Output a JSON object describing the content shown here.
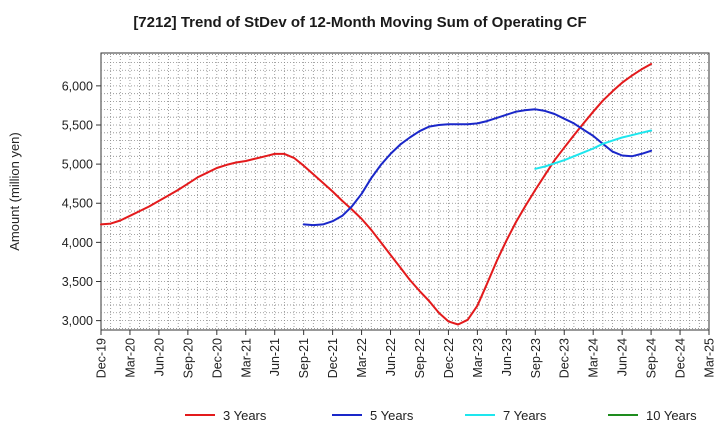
{
  "chart_data": {
    "type": "line",
    "title": "[7212]  Trend of StDev of 12-Month Moving Sum of Operating CF",
    "ylabel": "Amount (million yen)",
    "xlabel": "",
    "ylim": [
      2880,
      6420
    ],
    "yticks": [
      3000,
      3500,
      4000,
      4500,
      5000,
      5500,
      6000
    ],
    "ytick_labels": [
      "3,000",
      "3,500",
      "4,000",
      "4,500",
      "5,000",
      "5,500",
      "6,000"
    ],
    "xticks": [
      "Dec-19",
      "Mar-20",
      "Jun-20",
      "Sep-20",
      "Dec-20",
      "Mar-21",
      "Jun-21",
      "Sep-21",
      "Dec-21",
      "Mar-22",
      "Jun-22",
      "Sep-22",
      "Dec-22",
      "Mar-23",
      "Jun-23",
      "Sep-23",
      "Dec-23",
      "Mar-24",
      "Jun-24",
      "Sep-24",
      "Dec-24",
      "Mar-25"
    ],
    "grid": true,
    "legend_position": "bottom",
    "series": [
      {
        "name": "3 Years",
        "color": "#e31a1c",
        "x": [
          "Dec-19",
          "Jan-20",
          "Feb-20",
          "Mar-20",
          "Apr-20",
          "May-20",
          "Jun-20",
          "Jul-20",
          "Aug-20",
          "Sep-20",
          "Oct-20",
          "Nov-20",
          "Dec-20",
          "Jan-21",
          "Feb-21",
          "Mar-21",
          "Apr-21",
          "May-21",
          "Jun-21",
          "Jul-21",
          "Aug-21",
          "Sep-21",
          "Oct-21",
          "Nov-21",
          "Dec-21",
          "Jan-22",
          "Feb-22",
          "Mar-22",
          "Apr-22",
          "May-22",
          "Jun-22",
          "Jul-22",
          "Aug-22",
          "Sep-22",
          "Oct-22",
          "Nov-22",
          "Dec-22",
          "Jan-23",
          "Feb-23",
          "Mar-23",
          "Apr-23",
          "May-23",
          "Jun-23",
          "Jul-23",
          "Aug-23",
          "Sep-23",
          "Oct-23",
          "Nov-23",
          "Dec-23",
          "Jan-24",
          "Feb-24",
          "Mar-24",
          "Apr-24",
          "May-24",
          "Jun-24",
          "Jul-24",
          "Aug-24",
          "Sep-24"
        ],
        "values": [
          4230,
          4240,
          4280,
          4340,
          4400,
          4460,
          4530,
          4600,
          4670,
          4750,
          4830,
          4890,
          4950,
          4990,
          5020,
          5040,
          5070,
          5100,
          5130,
          5130,
          5080,
          4980,
          4870,
          4760,
          4650,
          4530,
          4420,
          4300,
          4160,
          4000,
          3840,
          3680,
          3520,
          3380,
          3250,
          3100,
          2990,
          2950,
          3010,
          3190,
          3470,
          3760,
          4020,
          4260,
          4470,
          4670,
          4860,
          5050,
          5210,
          5370,
          5520,
          5670,
          5810,
          5930,
          6040,
          6130,
          6210,
          6280
        ]
      },
      {
        "name": "5 Years",
        "color": "#1a27c9",
        "x": [
          "Sep-21",
          "Oct-21",
          "Nov-21",
          "Dec-21",
          "Jan-22",
          "Feb-22",
          "Mar-22",
          "Apr-22",
          "May-22",
          "Jun-22",
          "Jul-22",
          "Aug-22",
          "Sep-22",
          "Oct-22",
          "Nov-22",
          "Dec-22",
          "Jan-23",
          "Feb-23",
          "Mar-23",
          "Apr-23",
          "May-23",
          "Jun-23",
          "Jul-23",
          "Aug-23",
          "Sep-23",
          "Oct-23",
          "Nov-23",
          "Dec-23",
          "Jan-24",
          "Feb-24",
          "Mar-24",
          "Apr-24",
          "May-24",
          "Jun-24",
          "Jul-24",
          "Aug-24",
          "Sep-24"
        ],
        "values": [
          4230,
          4220,
          4230,
          4270,
          4340,
          4460,
          4620,
          4820,
          4990,
          5130,
          5250,
          5340,
          5420,
          5480,
          5500,
          5510,
          5510,
          5510,
          5520,
          5550,
          5590,
          5630,
          5670,
          5690,
          5700,
          5680,
          5640,
          5580,
          5520,
          5440,
          5360,
          5260,
          5160,
          5110,
          5100,
          5130,
          5170
        ]
      },
      {
        "name": "7 Years",
        "color": "#1ee6ee",
        "x": [
          "Sep-23",
          "Oct-23",
          "Nov-23",
          "Dec-23",
          "Jan-24",
          "Feb-24",
          "Mar-24",
          "Apr-24",
          "May-24",
          "Jun-24",
          "Jul-24",
          "Aug-24",
          "Sep-24"
        ],
        "values": [
          4940,
          4970,
          5010,
          5050,
          5100,
          5150,
          5200,
          5260,
          5300,
          5340,
          5370,
          5400,
          5430
        ]
      },
      {
        "name": "10 Years",
        "color": "#1e8c1e",
        "x": [],
        "values": []
      }
    ]
  }
}
